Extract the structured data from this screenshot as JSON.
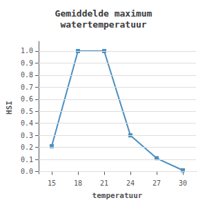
{
  "chart_data": {
    "type": "line",
    "title": "Gemiddelde maximum\nwatertemperatuur",
    "x_label": "temperatuur",
    "y_label": "HSI",
    "x": [
      15,
      18,
      21,
      24,
      27,
      30
    ],
    "values": [
      0.21,
      1.0,
      1.0,
      0.3,
      0.11,
      0.01
    ],
    "color": "#4a8fc0",
    "marker": "square",
    "xlim": [
      13.5,
      31.5
    ],
    "ylim": [
      -0.02,
      1.08
    ],
    "xticks": [
      15,
      18,
      21,
      24,
      27,
      30
    ],
    "yticks": [
      {
        "value": 0.0,
        "label": "0.0"
      },
      0.1,
      0.2,
      0.3,
      0.4,
      0.5,
      0.6,
      0.7,
      0.8,
      0.9,
      {
        "value": 1.0,
        "label": "1.0"
      }
    ],
    "grid": true
  }
}
